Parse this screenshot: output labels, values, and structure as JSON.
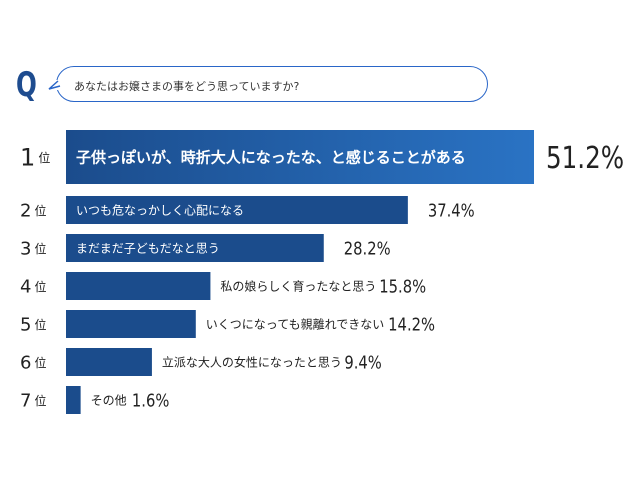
{
  "question": {
    "marker": "Q",
    "text": "あなたはお嬢さまの事をどう思っていますか?"
  },
  "colors": {
    "bar": "#1b4c8c",
    "bar_top_gradient_end": "#2a73c4",
    "q_accent": "#1e4c8f",
    "bubble_border": "#2a66c8"
  },
  "chart_data": {
    "type": "bar",
    "orientation": "horizontal",
    "rank_suffix": "位",
    "items": [
      {
        "rank": "1",
        "label": "子供っぽいが、時折大人になったな、と感じることがある",
        "value": 51.2,
        "value_text": "51.2%"
      },
      {
        "rank": "2",
        "label": "いつも危なっかしく心配になる",
        "value": 37.4,
        "value_text": "37.4%"
      },
      {
        "rank": "3",
        "label": "まだまだ子どもだなと思う",
        "value": 28.2,
        "value_text": "28.2%"
      },
      {
        "rank": "4",
        "label": "私の娘らしく育ったなと思う",
        "value": 15.8,
        "value_text": "15.8%"
      },
      {
        "rank": "5",
        "label": "いくつになっても親離れできない",
        "value": 14.2,
        "value_text": "14.2%"
      },
      {
        "rank": "6",
        "label": "立派な大人の女性になったと思う",
        "value": 9.4,
        "value_text": "9.4%"
      },
      {
        "rank": "7",
        "label": "その他",
        "value": 1.6,
        "value_text": "1.6%"
      }
    ]
  }
}
